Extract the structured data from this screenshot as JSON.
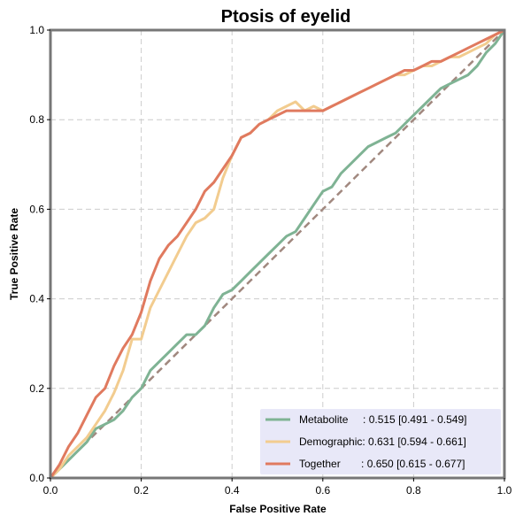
{
  "chart_data": {
    "type": "line",
    "title": "Ptosis of eyelid",
    "xlabel": "False Positive Rate",
    "ylabel": "True Positive Rate",
    "xlim": [
      0,
      1
    ],
    "ylim": [
      0,
      1
    ],
    "xticks": [
      0,
      0.2,
      0.4,
      0.6,
      0.8,
      1.0
    ],
    "yticks": [
      0,
      0.2,
      0.4,
      0.6,
      0.8,
      1.0
    ],
    "xtick_labels": [
      "0.0",
      "0.2",
      "0.4",
      "0.6",
      "0.8",
      "1.0"
    ],
    "ytick_labels": [
      "0.0",
      "0.2",
      "0.4",
      "0.6",
      "0.8",
      "1.0"
    ],
    "grid": true,
    "legend_position": "lower-right",
    "legend_background": "#e8e8f8",
    "diagonal": {
      "color": "#a1887f",
      "style": "dashed"
    },
    "series": [
      {
        "name": "Metabolite",
        "label": "Metabolite     : 0.515 [0.491 - 0.549]",
        "color": "#7fb394",
        "x": [
          0,
          0.02,
          0.04,
          0.06,
          0.08,
          0.1,
          0.12,
          0.14,
          0.16,
          0.18,
          0.2,
          0.22,
          0.24,
          0.26,
          0.28,
          0.3,
          0.32,
          0.34,
          0.36,
          0.38,
          0.4,
          0.42,
          0.44,
          0.46,
          0.48,
          0.5,
          0.52,
          0.54,
          0.56,
          0.58,
          0.6,
          0.62,
          0.64,
          0.66,
          0.68,
          0.7,
          0.72,
          0.74,
          0.76,
          0.78,
          0.8,
          0.82,
          0.84,
          0.86,
          0.88,
          0.9,
          0.92,
          0.94,
          0.96,
          0.98,
          1.0
        ],
        "y": [
          0,
          0.02,
          0.04,
          0.06,
          0.08,
          0.11,
          0.12,
          0.13,
          0.15,
          0.18,
          0.2,
          0.24,
          0.26,
          0.28,
          0.3,
          0.32,
          0.32,
          0.34,
          0.38,
          0.41,
          0.42,
          0.44,
          0.46,
          0.48,
          0.5,
          0.52,
          0.54,
          0.55,
          0.58,
          0.61,
          0.64,
          0.65,
          0.68,
          0.7,
          0.72,
          0.74,
          0.75,
          0.76,
          0.77,
          0.79,
          0.81,
          0.83,
          0.85,
          0.87,
          0.88,
          0.89,
          0.9,
          0.92,
          0.95,
          0.97,
          1.0
        ]
      },
      {
        "name": "Demographic",
        "label": "Demographic: 0.631 [0.594 - 0.661]",
        "color": "#f2cc8f",
        "x": [
          0,
          0.02,
          0.04,
          0.06,
          0.08,
          0.1,
          0.12,
          0.14,
          0.16,
          0.18,
          0.2,
          0.22,
          0.24,
          0.26,
          0.28,
          0.3,
          0.32,
          0.34,
          0.36,
          0.38,
          0.4,
          0.42,
          0.44,
          0.46,
          0.48,
          0.5,
          0.52,
          0.54,
          0.56,
          0.58,
          0.6,
          0.62,
          0.64,
          0.66,
          0.68,
          0.7,
          0.72,
          0.74,
          0.76,
          0.78,
          0.8,
          0.82,
          0.84,
          0.86,
          0.88,
          0.9,
          0.92,
          0.94,
          0.96,
          0.98,
          1.0
        ],
        "y": [
          0,
          0.02,
          0.05,
          0.07,
          0.09,
          0.12,
          0.15,
          0.19,
          0.24,
          0.31,
          0.31,
          0.38,
          0.42,
          0.46,
          0.5,
          0.54,
          0.57,
          0.58,
          0.6,
          0.67,
          0.72,
          0.76,
          0.77,
          0.79,
          0.8,
          0.82,
          0.83,
          0.84,
          0.82,
          0.83,
          0.82,
          0.83,
          0.84,
          0.85,
          0.86,
          0.87,
          0.88,
          0.89,
          0.9,
          0.9,
          0.91,
          0.92,
          0.92,
          0.93,
          0.94,
          0.94,
          0.95,
          0.96,
          0.97,
          0.99,
          1.0
        ]
      },
      {
        "name": "Together",
        "label": "Together       : 0.650 [0.615 - 0.677]",
        "color": "#e07a5f",
        "x": [
          0,
          0.02,
          0.04,
          0.06,
          0.08,
          0.1,
          0.12,
          0.14,
          0.16,
          0.18,
          0.2,
          0.22,
          0.24,
          0.26,
          0.28,
          0.3,
          0.32,
          0.34,
          0.36,
          0.38,
          0.4,
          0.42,
          0.44,
          0.46,
          0.48,
          0.5,
          0.52,
          0.54,
          0.56,
          0.58,
          0.6,
          0.62,
          0.64,
          0.66,
          0.68,
          0.7,
          0.72,
          0.74,
          0.76,
          0.78,
          0.8,
          0.82,
          0.84,
          0.86,
          0.88,
          0.9,
          0.92,
          0.94,
          0.96,
          0.98,
          1.0
        ],
        "y": [
          0,
          0.03,
          0.07,
          0.1,
          0.14,
          0.18,
          0.2,
          0.25,
          0.29,
          0.32,
          0.37,
          0.44,
          0.49,
          0.52,
          0.54,
          0.57,
          0.6,
          0.64,
          0.66,
          0.69,
          0.72,
          0.76,
          0.77,
          0.79,
          0.8,
          0.81,
          0.82,
          0.82,
          0.82,
          0.82,
          0.82,
          0.83,
          0.84,
          0.85,
          0.86,
          0.87,
          0.88,
          0.89,
          0.9,
          0.91,
          0.91,
          0.92,
          0.93,
          0.93,
          0.94,
          0.95,
          0.96,
          0.97,
          0.98,
          0.99,
          1.0
        ]
      }
    ]
  }
}
